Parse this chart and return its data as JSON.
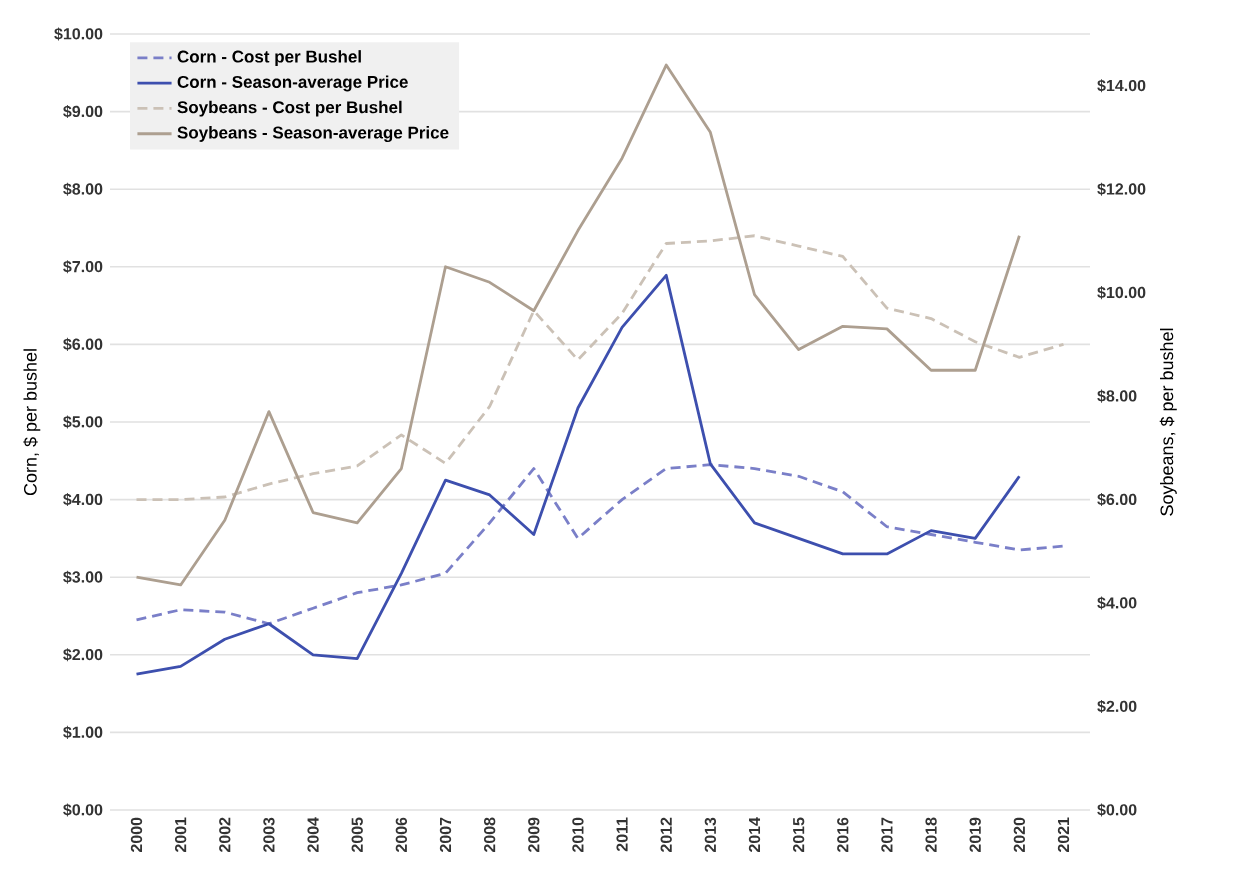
{
  "chart_data": {
    "type": "line",
    "ylabel": "Corn, $ per bushel",
    "y2label": "Soybeans, $ per bushel",
    "categories": [
      "2000",
      "2001",
      "2002",
      "2003",
      "2004",
      "2005",
      "2006",
      "2007",
      "2008",
      "2009",
      "2010",
      "2011",
      "2012",
      "2013",
      "2014",
      "2015",
      "2016",
      "2017",
      "2018",
      "2019",
      "2020",
      "2021"
    ],
    "ylim": [
      0,
      10
    ],
    "yticks": [
      {
        "value": 0,
        "label": "$0.00"
      },
      {
        "value": 1,
        "label": "$1.00"
      },
      {
        "value": 2,
        "label": "$2.00"
      },
      {
        "value": 3,
        "label": "$3.00"
      },
      {
        "value": 4,
        "label": "$4.00"
      },
      {
        "value": 5,
        "label": "$5.00"
      },
      {
        "value": 6,
        "label": "$6.00"
      },
      {
        "value": 7,
        "label": "$7.00"
      },
      {
        "value": 8,
        "label": "$8.00"
      },
      {
        "value": 9,
        "label": "$9.00"
      },
      {
        "value": 10,
        "label": "$10.00"
      }
    ],
    "y2lim": [
      0,
      15
    ],
    "y2ticks": [
      {
        "value": 0,
        "label": "$0.00"
      },
      {
        "value": 2,
        "label": "$2.00"
      },
      {
        "value": 4,
        "label": "$4.00"
      },
      {
        "value": 6,
        "label": "$6.00"
      },
      {
        "value": 8,
        "label": "$8.00"
      },
      {
        "value": 10,
        "label": "$10.00"
      },
      {
        "value": 12,
        "label": "$12.00"
      },
      {
        "value": 14,
        "label": "$14.00"
      }
    ],
    "grid": "y",
    "legend": "top left",
    "marker": "none",
    "series": [
      {
        "name": "Corn - Cost per Bushel",
        "color": "#7a7fc8",
        "line_style": "dashed",
        "values": [
          2.45,
          2.58,
          2.55,
          2.4,
          2.6,
          2.8,
          2.9,
          3.05,
          3.7,
          4.4,
          3.5,
          4.0,
          4.4,
          4.45,
          4.4,
          4.3,
          4.1,
          3.65,
          3.55,
          3.45,
          3.35,
          3.4
        ]
      },
      {
        "name": "Corn - Season-average Price",
        "color": "#3d4fae",
        "line_style": "solid",
        "values": [
          1.75,
          1.85,
          2.2,
          2.4,
          2.0,
          1.95,
          3.05,
          4.25,
          4.06,
          3.55,
          5.18,
          6.22,
          6.89,
          4.46,
          3.7,
          3.5,
          3.3,
          3.3,
          3.6,
          3.5,
          4.3,
          null
        ]
      },
      {
        "name": "Soybeans - Cost per Bushel",
        "color": "#cbc1b6",
        "line_style": "dashed",
        "axis": "y2",
        "values": [
          6.0,
          6.0,
          6.05,
          6.3,
          6.5,
          6.65,
          7.25,
          6.7,
          7.8,
          9.65,
          8.7,
          9.6,
          10.95,
          11.0,
          11.1,
          10.9,
          10.7,
          9.7,
          9.5,
          9.05,
          8.75,
          9.0
        ]
      },
      {
        "name": "Soybeans - Season-average Price",
        "color": "#ad9f90",
        "line_style": "solid",
        "axis": "y2",
        "values": [
          4.5,
          4.35,
          5.6,
          7.7,
          5.75,
          5.55,
          6.6,
          10.5,
          10.2,
          9.65,
          11.2,
          12.6,
          14.4,
          13.1,
          9.96,
          8.9,
          9.35,
          9.3,
          8.5,
          8.5,
          11.1,
          null
        ]
      }
    ]
  }
}
